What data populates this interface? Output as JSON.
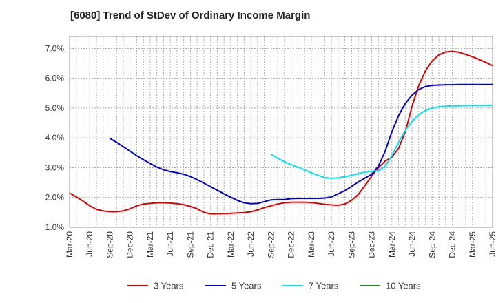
{
  "chart_data": {
    "type": "line",
    "title": "[6080]  Trend of StDev of Ordinary Income Margin",
    "y_ticks": [
      "1.0%",
      "2.0%",
      "3.0%",
      "4.0%",
      "5.0%",
      "6.0%",
      "7.0%"
    ],
    "ylim": [
      1.0,
      7.4
    ],
    "x_ticks": [
      "Mar-20",
      "Jun-20",
      "Sep-20",
      "Dec-20",
      "Mar-21",
      "Jun-21",
      "Sep-21",
      "Dec-21",
      "Mar-22",
      "Jun-22",
      "Sep-22",
      "Dec-22",
      "Mar-23",
      "Jun-23",
      "Sep-23",
      "Dec-23",
      "Mar-24",
      "Jun-24",
      "Sep-24",
      "Dec-24",
      "Mar-25",
      "Jun-25"
    ],
    "grid": true,
    "legend_position": "bottom",
    "series": [
      {
        "name": "3 Years",
        "color": "#dd0000",
        "start_index": 0,
        "values": [
          2.15,
          2.02,
          1.88,
          1.72,
          1.6,
          1.55,
          1.52,
          1.52,
          1.55,
          1.62,
          1.72,
          1.78,
          1.8,
          1.82,
          1.82,
          1.81,
          1.79,
          1.76,
          1.7,
          1.62,
          1.5,
          1.45,
          1.45,
          1.46,
          1.47,
          1.48,
          1.49,
          1.52,
          1.58,
          1.66,
          1.72,
          1.78,
          1.82,
          1.84,
          1.84,
          1.84,
          1.83,
          1.8,
          1.77,
          1.75,
          1.74,
          1.78,
          1.9,
          2.1,
          2.4,
          2.72,
          3.0,
          3.22,
          3.35,
          3.65,
          4.2,
          5.05,
          5.75,
          6.25,
          6.58,
          6.78,
          6.88,
          6.9,
          6.87,
          6.8,
          6.72,
          6.63,
          6.53,
          6.42
        ]
      },
      {
        "name": "5 Years",
        "color": "#0000cc",
        "start_index": 6,
        "values": [
          3.98,
          3.85,
          3.7,
          3.55,
          3.4,
          3.27,
          3.14,
          3.02,
          2.93,
          2.87,
          2.83,
          2.78,
          2.7,
          2.6,
          2.48,
          2.36,
          2.24,
          2.12,
          2.01,
          1.9,
          1.82,
          1.79,
          1.8,
          1.86,
          1.92,
          1.93,
          1.93,
          1.96,
          1.97,
          1.97,
          1.97,
          1.97,
          1.98,
          2.02,
          2.12,
          2.23,
          2.37,
          2.52,
          2.65,
          2.78,
          3.05,
          3.55,
          4.2,
          4.75,
          5.15,
          5.43,
          5.62,
          5.72,
          5.76,
          5.77,
          5.78,
          5.78,
          5.79,
          5.79,
          5.79,
          5.79,
          5.79,
          5.79
        ]
      },
      {
        "name": "7 Years",
        "color": "#00e5ee",
        "start_index": 30,
        "values": [
          3.45,
          3.32,
          3.2,
          3.1,
          3.02,
          2.93,
          2.83,
          2.74,
          2.67,
          2.64,
          2.66,
          2.7,
          2.74,
          2.8,
          2.85,
          2.88,
          2.9,
          3.05,
          3.4,
          3.85,
          4.25,
          4.55,
          4.78,
          4.92,
          5.0,
          5.04,
          5.06,
          5.07,
          5.07,
          5.08,
          5.08,
          5.08,
          5.09,
          5.09
        ]
      },
      {
        "name": "10 Years",
        "color": "#228b22",
        "start_index": 0,
        "values": []
      }
    ]
  }
}
